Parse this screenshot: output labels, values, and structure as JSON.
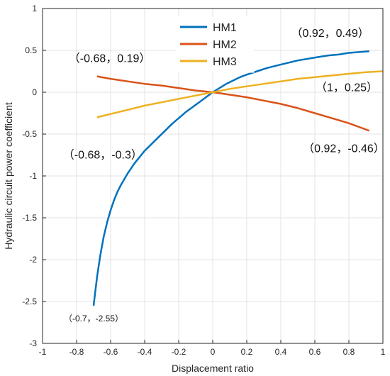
{
  "chart_data": {
    "type": "line",
    "xlabel": "Displacement ratio",
    "ylabel": "Hydraulic circuit power coefficient",
    "xlim": [
      -1,
      1
    ],
    "ylim": [
      -3,
      1
    ],
    "grid": true,
    "legend_position": "top-center",
    "xticks": [
      -1,
      -0.8,
      -0.6,
      -0.4,
      -0.2,
      0,
      0.2,
      0.4,
      0.6,
      0.8,
      1
    ],
    "xtick_labels": [
      "-1",
      "-0.8",
      "-0.6",
      "-0.4",
      "-0.2",
      "0",
      "0.2",
      "0.4",
      "0.6",
      "0.8",
      "1"
    ],
    "yticks": [
      -3,
      -2.5,
      -2,
      -1.5,
      -1,
      -0.5,
      0,
      0.5,
      1
    ],
    "ytick_labels": [
      "-3",
      "-2.5",
      "-2",
      "-1.5",
      "-1",
      "-0.5",
      "0",
      "0.5",
      "1"
    ],
    "series": [
      {
        "name": "HM1",
        "color": "#0072BD",
        "x": [
          -0.7,
          -0.68,
          -0.66,
          -0.64,
          -0.62,
          -0.6,
          -0.58,
          -0.56,
          -0.54,
          -0.52,
          -0.5,
          -0.48,
          -0.46,
          -0.44,
          -0.42,
          -0.4,
          -0.36,
          -0.32,
          -0.28,
          -0.24,
          -0.2,
          -0.16,
          -0.12,
          -0.08,
          -0.04,
          0,
          0.04,
          0.08,
          0.12,
          0.16,
          0.2,
          0.26,
          0.32,
          0.38,
          0.44,
          0.5,
          0.56,
          0.62,
          0.68,
          0.74,
          0.8,
          0.86,
          0.92
        ],
        "y": [
          -2.55,
          -2.21,
          -1.94,
          -1.72,
          -1.55,
          -1.41,
          -1.29,
          -1.19,
          -1.11,
          -1.04,
          -0.97,
          -0.91,
          -0.85,
          -0.8,
          -0.75,
          -0.7,
          -0.62,
          -0.54,
          -0.46,
          -0.38,
          -0.31,
          -0.24,
          -0.18,
          -0.12,
          -0.06,
          0,
          0.05,
          0.1,
          0.14,
          0.18,
          0.21,
          0.25,
          0.29,
          0.32,
          0.35,
          0.38,
          0.4,
          0.42,
          0.44,
          0.45,
          0.47,
          0.48,
          0.49
        ]
      },
      {
        "name": "HM2",
        "color": "#D95319",
        "x": [
          -0.68,
          -0.6,
          -0.5,
          -0.4,
          -0.3,
          -0.2,
          -0.1,
          0,
          0.1,
          0.2,
          0.3,
          0.4,
          0.5,
          0.6,
          0.7,
          0.8,
          0.92
        ],
        "y": [
          0.19,
          0.16,
          0.13,
          0.1,
          0.08,
          0.05,
          0.02,
          0,
          -0.03,
          -0.06,
          -0.1,
          -0.14,
          -0.19,
          -0.25,
          -0.31,
          -0.37,
          -0.46
        ]
      },
      {
        "name": "HM3",
        "color": "#EDB120",
        "x": [
          -0.68,
          -0.6,
          -0.5,
          -0.4,
          -0.3,
          -0.2,
          -0.1,
          0,
          0.1,
          0.2,
          0.3,
          0.4,
          0.5,
          0.6,
          0.7,
          0.8,
          0.9,
          1
        ],
        "y": [
          -0.3,
          -0.26,
          -0.21,
          -0.16,
          -0.12,
          -0.08,
          -0.04,
          0,
          0.04,
          0.07,
          0.1,
          0.13,
          0.16,
          0.18,
          0.2,
          0.22,
          0.24,
          0.25
        ]
      }
    ],
    "annotations": [
      {
        "text": "（0.92，0.49）",
        "x": 0.92,
        "y": 0.49
      },
      {
        "text": "（-0.68，0.19）",
        "x": -0.68,
        "y": 0.19
      },
      {
        "text": "（1，0.25）",
        "x": 1,
        "y": 0.25
      },
      {
        "text": "（-0.68，-0.3）",
        "x": -0.68,
        "y": -0.3
      },
      {
        "text": "（0.92，-0.46）",
        "x": 0.92,
        "y": -0.46
      },
      {
        "text": "（-0.7，-2.55）",
        "x": -0.7,
        "y": -2.55
      }
    ]
  }
}
